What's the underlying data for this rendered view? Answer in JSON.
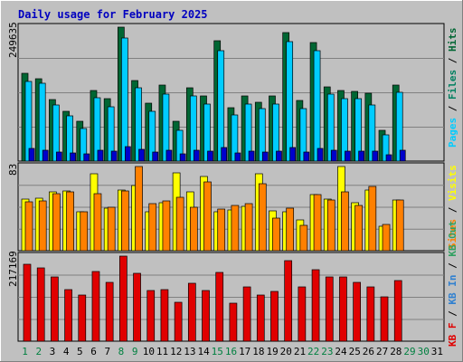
{
  "colors": {
    "background": "#C0C0C0",
    "panel_bg": "#C0C0C0",
    "title": "#0000C0",
    "pages": "#00CCFF",
    "files": "#008060",
    "hits": "#006633",
    "visits": "#FFFF00",
    "sites": "#FF8000",
    "kb_out": "#30A060",
    "kb_in": "#3080D0",
    "kb_f": "#E00000",
    "day_weekday": "#000000",
    "day_weekend": "#008040"
  },
  "chart_data": [
    {
      "type": "bar",
      "title": "Daily usage for February 2025",
      "panel": "hits-files-pages",
      "ymax_label": "249635",
      "categories": [
        "1",
        "2",
        "3",
        "4",
        "5",
        "6",
        "7",
        "8",
        "9",
        "10",
        "11",
        "12",
        "13",
        "14",
        "15",
        "16",
        "17",
        "18",
        "19",
        "20",
        "21",
        "22",
        "23",
        "24",
        "25",
        "26",
        "27",
        "28",
        "29",
        "30",
        "31"
      ],
      "series": [
        {
          "name": "Hits",
          "values": [
            164000,
            154000,
            114000,
            93000,
            74000,
            131000,
            117000,
            249635,
            150000,
            108000,
            141000,
            75000,
            137000,
            122000,
            224000,
            100000,
            121000,
            109000,
            121000,
            240000,
            113000,
            221000,
            139000,
            132000,
            130000,
            127000,
            58000,
            142000,
            0,
            0,
            0
          ]
        },
        {
          "name": "Files",
          "values": [
            148000,
            145000,
            105000,
            85000,
            61000,
            118000,
            102000,
            230000,
            136000,
            93000,
            124000,
            58000,
            121000,
            107000,
            206000,
            86000,
            106000,
            97000,
            107000,
            222000,
            98000,
            205000,
            125000,
            117000,
            117000,
            105000,
            49000,
            128000,
            0,
            0,
            0
          ]
        },
        {
          "name": "Pages",
          "values": [
            23000,
            20000,
            17000,
            15000,
            14000,
            21000,
            19000,
            27000,
            22000,
            17000,
            20000,
            14000,
            21000,
            18000,
            25000,
            16000,
            18000,
            17000,
            19000,
            26000,
            17000,
            24000,
            20000,
            19000,
            19000,
            18000,
            12000,
            21000,
            0,
            0,
            0
          ]
        }
      ],
      "legend": [
        "Pages",
        "Files",
        "Hits"
      ]
    },
    {
      "type": "bar",
      "panel": "visits-sites",
      "ymax_label": "83",
      "categories": [
        "1",
        "2",
        "3",
        "4",
        "5",
        "6",
        "7",
        "8",
        "9",
        "10",
        "11",
        "12",
        "13",
        "14",
        "15",
        "16",
        "17",
        "18",
        "19",
        "20",
        "21",
        "22",
        "23",
        "24",
        "25",
        "26",
        "27",
        "28",
        "29",
        "30",
        "31"
      ],
      "series": [
        {
          "name": "Visits",
          "values": [
            51,
            52,
            58,
            59,
            38,
            76,
            42,
            60,
            64,
            38,
            47,
            77,
            58,
            73,
            38,
            40,
            44,
            76,
            39,
            38,
            30,
            55,
            51,
            83,
            47,
            60,
            24,
            50,
            0,
            0,
            0
          ]
        },
        {
          "name": "Sites",
          "values": [
            48,
            49,
            56,
            58,
            38,
            56,
            43,
            59,
            83,
            46,
            49,
            53,
            43,
            68,
            41,
            45,
            46,
            66,
            32,
            42,
            25,
            55,
            50,
            58,
            45,
            63,
            26,
            50,
            0,
            0,
            0
          ]
        }
      ],
      "legend": [
        "Sites",
        "Visits"
      ]
    },
    {
      "type": "bar",
      "panel": "kbytes",
      "ymax_label": "217169",
      "categories": [
        "1",
        "2",
        "3",
        "4",
        "5",
        "6",
        "7",
        "8",
        "9",
        "10",
        "11",
        "12",
        "13",
        "14",
        "15",
        "16",
        "17",
        "18",
        "19",
        "20",
        "21",
        "22",
        "23",
        "24",
        "25",
        "26",
        "27",
        "28",
        "29",
        "30",
        "31"
      ],
      "series": [
        {
          "name": "KB F",
          "values": [
            196000,
            187000,
            165000,
            132000,
            117000,
            178000,
            150000,
            217169,
            173000,
            130000,
            131000,
            99000,
            148000,
            129000,
            175000,
            98000,
            138000,
            117000,
            128000,
            206000,
            139000,
            182000,
            163000,
            164000,
            150000,
            139000,
            114000,
            154000,
            0,
            0,
            0
          ]
        }
      ],
      "legend": [
        "KB F",
        "KB In",
        "KB Out"
      ]
    }
  ],
  "legend_text": {
    "hits": "Hits",
    "files": "Files",
    "pages": "Pages",
    "sep": "/",
    "visits": "Visits",
    "sites": "Sites",
    "kb_out": "KB Out",
    "kb_in": "KB In",
    "kb_f": "KB F"
  },
  "weekend_days": [
    "1",
    "2",
    "8",
    "9",
    "15",
    "16",
    "22",
    "23",
    "29",
    "30"
  ]
}
